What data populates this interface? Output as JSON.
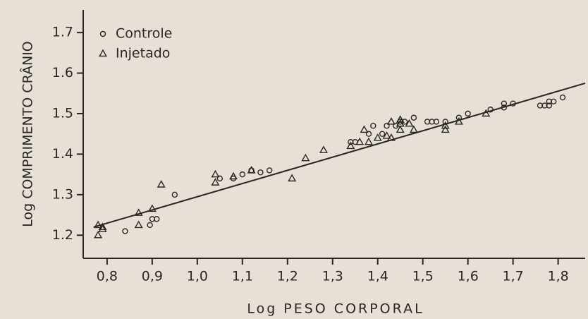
{
  "chart_data": {
    "type": "scatter",
    "xlabel": "Log PESO CORPORAL",
    "ylabel": "Log COMPRIMENTO CRÂNIO",
    "xlim": [
      0.747,
      1.86
    ],
    "ylim": [
      1.143,
      1.756
    ],
    "xticks": [
      {
        "value": 0.8,
        "label": "0,8"
      },
      {
        "value": 0.9,
        "label": "0,9"
      },
      {
        "value": 1.0,
        "label": "1,0"
      },
      {
        "value": 1.1,
        "label": "1,1"
      },
      {
        "value": 1.2,
        "label": "1,2"
      },
      {
        "value": 1.3,
        "label": "1,3"
      },
      {
        "value": 1.4,
        "label": "1,4"
      },
      {
        "value": 1.5,
        "label": "1,5"
      },
      {
        "value": 1.6,
        "label": "1,6"
      },
      {
        "value": 1.7,
        "label": "1,7"
      },
      {
        "value": 1.8,
        "label": "1,8"
      }
    ],
    "yticks": [
      1.2,
      1.3,
      1.4,
      1.5,
      1.6,
      1.7
    ],
    "legend": "upper left",
    "series": [
      {
        "name": "Controle",
        "marker": "circle",
        "color": "#2a2624",
        "x": [
          0.84,
          0.895,
          0.9,
          0.91,
          0.95,
          1.05,
          1.08,
          1.1,
          1.12,
          1.14,
          1.16,
          1.34,
          1.35,
          1.38,
          1.39,
          1.42,
          1.44,
          1.45,
          1.46,
          1.48,
          1.41,
          1.51,
          1.52,
          1.53,
          1.55,
          1.58,
          1.6,
          1.65,
          1.68,
          1.68,
          1.7,
          1.76,
          1.77,
          1.78,
          1.78,
          1.79,
          1.81
        ],
        "y": [
          1.21,
          1.225,
          1.24,
          1.24,
          1.3,
          1.34,
          1.34,
          1.35,
          1.36,
          1.355,
          1.36,
          1.43,
          1.43,
          1.45,
          1.47,
          1.47,
          1.47,
          1.48,
          1.48,
          1.49,
          1.45,
          1.48,
          1.48,
          1.48,
          1.48,
          1.49,
          1.5,
          1.51,
          1.515,
          1.525,
          1.525,
          1.52,
          1.52,
          1.52,
          1.53,
          1.53,
          1.54
        ]
      },
      {
        "name": "Injetado",
        "marker": "triangle",
        "color": "#2a2624",
        "x": [
          0.78,
          0.79,
          0.78,
          0.79,
          0.87,
          0.87,
          0.9,
          0.92,
          1.04,
          1.04,
          1.08,
          1.12,
          1.21,
          1.24,
          1.28,
          1.34,
          1.38,
          1.4,
          1.42,
          1.43,
          1.45,
          1.45,
          1.45,
          1.47,
          1.43,
          1.48,
          1.55,
          1.55,
          1.58,
          1.64,
          1.37,
          1.36
        ],
        "y": [
          1.225,
          1.215,
          1.2,
          1.22,
          1.225,
          1.255,
          1.265,
          1.325,
          1.35,
          1.33,
          1.345,
          1.36,
          1.34,
          1.39,
          1.41,
          1.42,
          1.43,
          1.44,
          1.445,
          1.48,
          1.475,
          1.485,
          1.46,
          1.475,
          1.44,
          1.46,
          1.47,
          1.46,
          1.48,
          1.5,
          1.46,
          1.43
        ]
      }
    ],
    "fit": {
      "x": [
        0.77,
        1.86
      ],
      "y": [
        1.22,
        1.575
      ],
      "color": "#2a2624"
    }
  }
}
